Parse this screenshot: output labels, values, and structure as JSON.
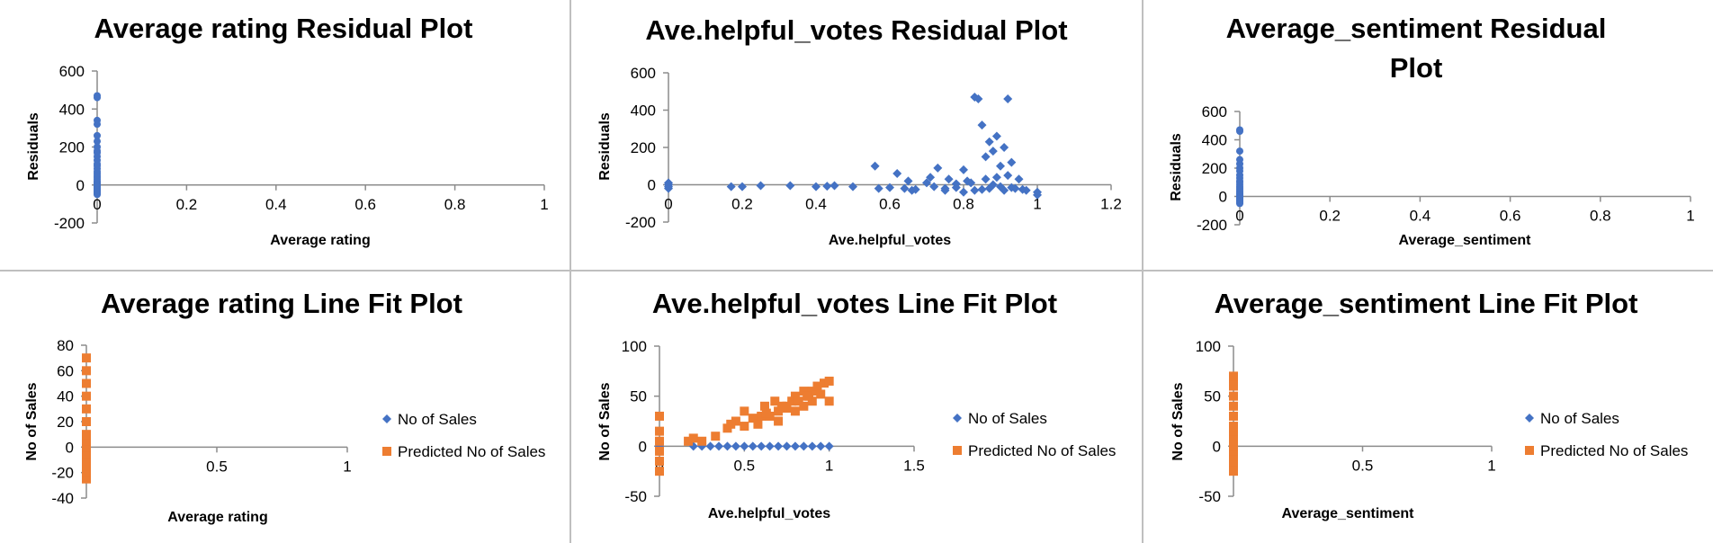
{
  "chart_data": [
    {
      "type": "scatter",
      "title": "Average rating  Residual Plot",
      "xlabel": "Average rating",
      "ylabel": "Residuals",
      "xlim": [
        0,
        1
      ],
      "ylim": [
        -200,
        600
      ],
      "xticks": [
        "0",
        "0.2",
        "0.4",
        "0.6",
        "0.8",
        "1"
      ],
      "yticks": [
        "-200",
        "0",
        "200",
        "400",
        "600"
      ],
      "marker": "circle",
      "color": "#4472C4",
      "series": [
        {
          "x": [
            0,
            0,
            0,
            0,
            0,
            0,
            0,
            0,
            0,
            0,
            0,
            0,
            0,
            0,
            0,
            0,
            0,
            0,
            0,
            0,
            0,
            0,
            0,
            0,
            0,
            0,
            0,
            0,
            0,
            0,
            0,
            0,
            0,
            0
          ],
          "y": [
            470,
            460,
            340,
            320,
            260,
            230,
            200,
            180,
            170,
            150,
            130,
            110,
            100,
            85,
            70,
            60,
            50,
            40,
            30,
            20,
            15,
            10,
            5,
            0,
            -5,
            -10,
            -15,
            -20,
            -25,
            -30,
            -35,
            -40,
            -45,
            -50
          ]
        }
      ]
    },
    {
      "type": "scatter",
      "title": "Ave.helpful_votes   Residual Plot",
      "xlabel": "Ave.helpful_votes",
      "ylabel": "Residuals",
      "xlim": [
        0,
        1.2
      ],
      "ylim": [
        -200,
        600
      ],
      "xticks": [
        "0",
        "0.2",
        "0.4",
        "0.6",
        "0.8",
        "1",
        "1.2"
      ],
      "yticks": [
        "-200",
        "0",
        "200",
        "400",
        "600"
      ],
      "marker": "diamond",
      "color": "#4472C4",
      "series": [
        {
          "x": [
            0,
            0,
            0,
            0,
            0.17,
            0.2,
            0.25,
            0.33,
            0.4,
            0.43,
            0.45,
            0.5,
            0.56,
            0.57,
            0.6,
            0.62,
            0.64,
            0.65,
            0.67,
            0.7,
            0.71,
            0.72,
            0.73,
            0.75,
            0.76,
            0.78,
            0.8,
            0.8,
            0.81,
            0.82,
            0.83,
            0.83,
            0.84,
            0.85,
            0.85,
            0.86,
            0.86,
            0.87,
            0.87,
            0.88,
            0.88,
            0.89,
            0.89,
            0.9,
            0.9,
            0.91,
            0.91,
            0.92,
            0.92,
            0.93,
            0.93,
            0.94,
            0.95,
            0.96,
            0.97,
            1.0,
            1.0,
            0.75,
            0.78,
            0.66
          ],
          "y": [
            10,
            0,
            -10,
            -20,
            -10,
            -10,
            -5,
            -5,
            -10,
            -8,
            -5,
            -10,
            100,
            -20,
            -15,
            60,
            -20,
            20,
            -25,
            10,
            40,
            -10,
            90,
            -30,
            30,
            -15,
            80,
            -40,
            20,
            10,
            470,
            -30,
            460,
            320,
            -25,
            150,
            30,
            230,
            -20,
            180,
            0,
            260,
            40,
            -10,
            100,
            200,
            -30,
            460,
            50,
            -15,
            120,
            -20,
            30,
            -25,
            -30,
            -40,
            -55,
            -20,
            5,
            -30
          ]
        }
      ]
    },
    {
      "type": "scatter",
      "title": "Average_sentiment   Residual Plot",
      "xlabel": "Average_sentiment",
      "ylabel": "Residuals",
      "xlim": [
        0,
        1
      ],
      "ylim": [
        -200,
        600
      ],
      "xticks": [
        "0",
        "0.2",
        "0.4",
        "0.6",
        "0.8",
        "1"
      ],
      "yticks": [
        "-200",
        "0",
        "200",
        "400",
        "600"
      ],
      "marker": "circle",
      "color": "#4472C4",
      "series": [
        {
          "x": [
            0,
            0,
            0,
            0,
            0,
            0,
            0,
            0,
            0,
            0,
            0,
            0,
            0,
            0,
            0,
            0,
            0,
            0,
            0,
            0,
            0,
            0,
            0,
            0,
            0,
            0,
            0,
            0,
            0,
            0,
            0,
            0
          ],
          "y": [
            470,
            460,
            320,
            260,
            230,
            200,
            180,
            150,
            130,
            110,
            100,
            85,
            70,
            60,
            50,
            40,
            30,
            20,
            15,
            10,
            5,
            0,
            -5,
            -10,
            -15,
            -20,
            -25,
            -30,
            -35,
            -40,
            -45,
            -50
          ]
        }
      ]
    },
    {
      "type": "scatter",
      "title": "Average rating Line Fit  Plot",
      "xlabel": "Average rating",
      "ylabel": "No of Sales",
      "xlim": [
        0,
        1
      ],
      "ylim": [
        -40,
        80
      ],
      "xticks": [
        "0",
        "0.5",
        "1"
      ],
      "yticks": [
        "-40",
        "-20",
        "0",
        "20",
        "40",
        "60",
        "80"
      ],
      "legend_position": "right",
      "series": [
        {
          "name": "No of Sales",
          "marker": "diamond",
          "color": "#4472C4",
          "x": [
            0,
            0,
            0,
            0,
            0
          ],
          "y": [
            0,
            0,
            0,
            0,
            0
          ]
        },
        {
          "name": "Predicted No of Sales",
          "marker": "square",
          "color": "#ED7D31",
          "x": [
            0,
            0,
            0,
            0,
            0,
            0,
            0,
            0,
            0,
            0,
            0,
            0,
            0,
            0
          ],
          "y": [
            -25,
            -20,
            -15,
            -10,
            -5,
            0,
            5,
            10,
            20,
            30,
            40,
            50,
            60,
            70
          ]
        }
      ]
    },
    {
      "type": "scatter",
      "title": "Ave.helpful_votes  Line Fit  Plot",
      "xlabel": "Ave.helpful_votes",
      "ylabel": "No of Sales",
      "xlim": [
        0,
        1.5
      ],
      "ylim": [
        -50,
        100
      ],
      "xticks": [
        "0",
        "0.5",
        "1",
        "1.5"
      ],
      "yticks": [
        "-50",
        "0",
        "50",
        "100"
      ],
      "legend_position": "right",
      "series": [
        {
          "name": "No of Sales",
          "marker": "diamond",
          "color": "#4472C4",
          "x": [
            0,
            0.2,
            0.25,
            0.3,
            0.35,
            0.4,
            0.45,
            0.5,
            0.55,
            0.6,
            0.65,
            0.7,
            0.75,
            0.8,
            0.85,
            0.9,
            0.95,
            1.0
          ],
          "y": [
            0,
            0,
            0,
            0,
            0,
            0,
            0,
            0,
            0,
            0,
            0,
            0,
            0,
            0,
            0,
            0,
            0,
            0
          ]
        },
        {
          "name": "Predicted No of Sales",
          "marker": "square",
          "color": "#ED7D31",
          "x": [
            0,
            0,
            0,
            0,
            0,
            0,
            0.17,
            0.2,
            0.25,
            0.33,
            0.4,
            0.45,
            0.5,
            0.5,
            0.55,
            0.58,
            0.6,
            0.62,
            0.65,
            0.68,
            0.7,
            0.7,
            0.72,
            0.75,
            0.78,
            0.8,
            0.8,
            0.82,
            0.85,
            0.85,
            0.88,
            0.9,
            0.9,
            0.93,
            0.95,
            0.97,
            1.0,
            1.0,
            0.42,
            0.63,
            0.75,
            0.87
          ],
          "y": [
            -25,
            -15,
            -5,
            5,
            15,
            30,
            5,
            8,
            5,
            10,
            18,
            25,
            20,
            35,
            28,
            22,
            30,
            40,
            30,
            45,
            35,
            25,
            40,
            38,
            45,
            50,
            35,
            45,
            55,
            40,
            50,
            55,
            45,
            60,
            52,
            63,
            65,
            45,
            22,
            33,
            40,
            50
          ]
        }
      ]
    },
    {
      "type": "scatter",
      "title": "Average_sentiment  Line Fit  Plot",
      "xlabel": "Average_sentiment",
      "ylabel": "No of Sales",
      "xlim": [
        0,
        1
      ],
      "ylim": [
        -50,
        100
      ],
      "xticks": [
        "0",
        "0.5",
        "1"
      ],
      "yticks": [
        "-50",
        "0",
        "50",
        "100"
      ],
      "legend_position": "right",
      "series": [
        {
          "name": "No of Sales",
          "marker": "diamond",
          "color": "#4472C4",
          "x": [
            0,
            0,
            0,
            0,
            0
          ],
          "y": [
            0,
            0,
            0,
            0,
            0
          ]
        },
        {
          "name": "Predicted No of Sales",
          "marker": "square",
          "color": "#ED7D31",
          "x": [
            0,
            0,
            0,
            0,
            0,
            0,
            0,
            0,
            0,
            0,
            0,
            0,
            0,
            0,
            0,
            0
          ],
          "y": [
            -25,
            -20,
            -15,
            -10,
            -5,
            0,
            5,
            10,
            15,
            20,
            30,
            40,
            50,
            60,
            65,
            70
          ]
        }
      ]
    }
  ]
}
